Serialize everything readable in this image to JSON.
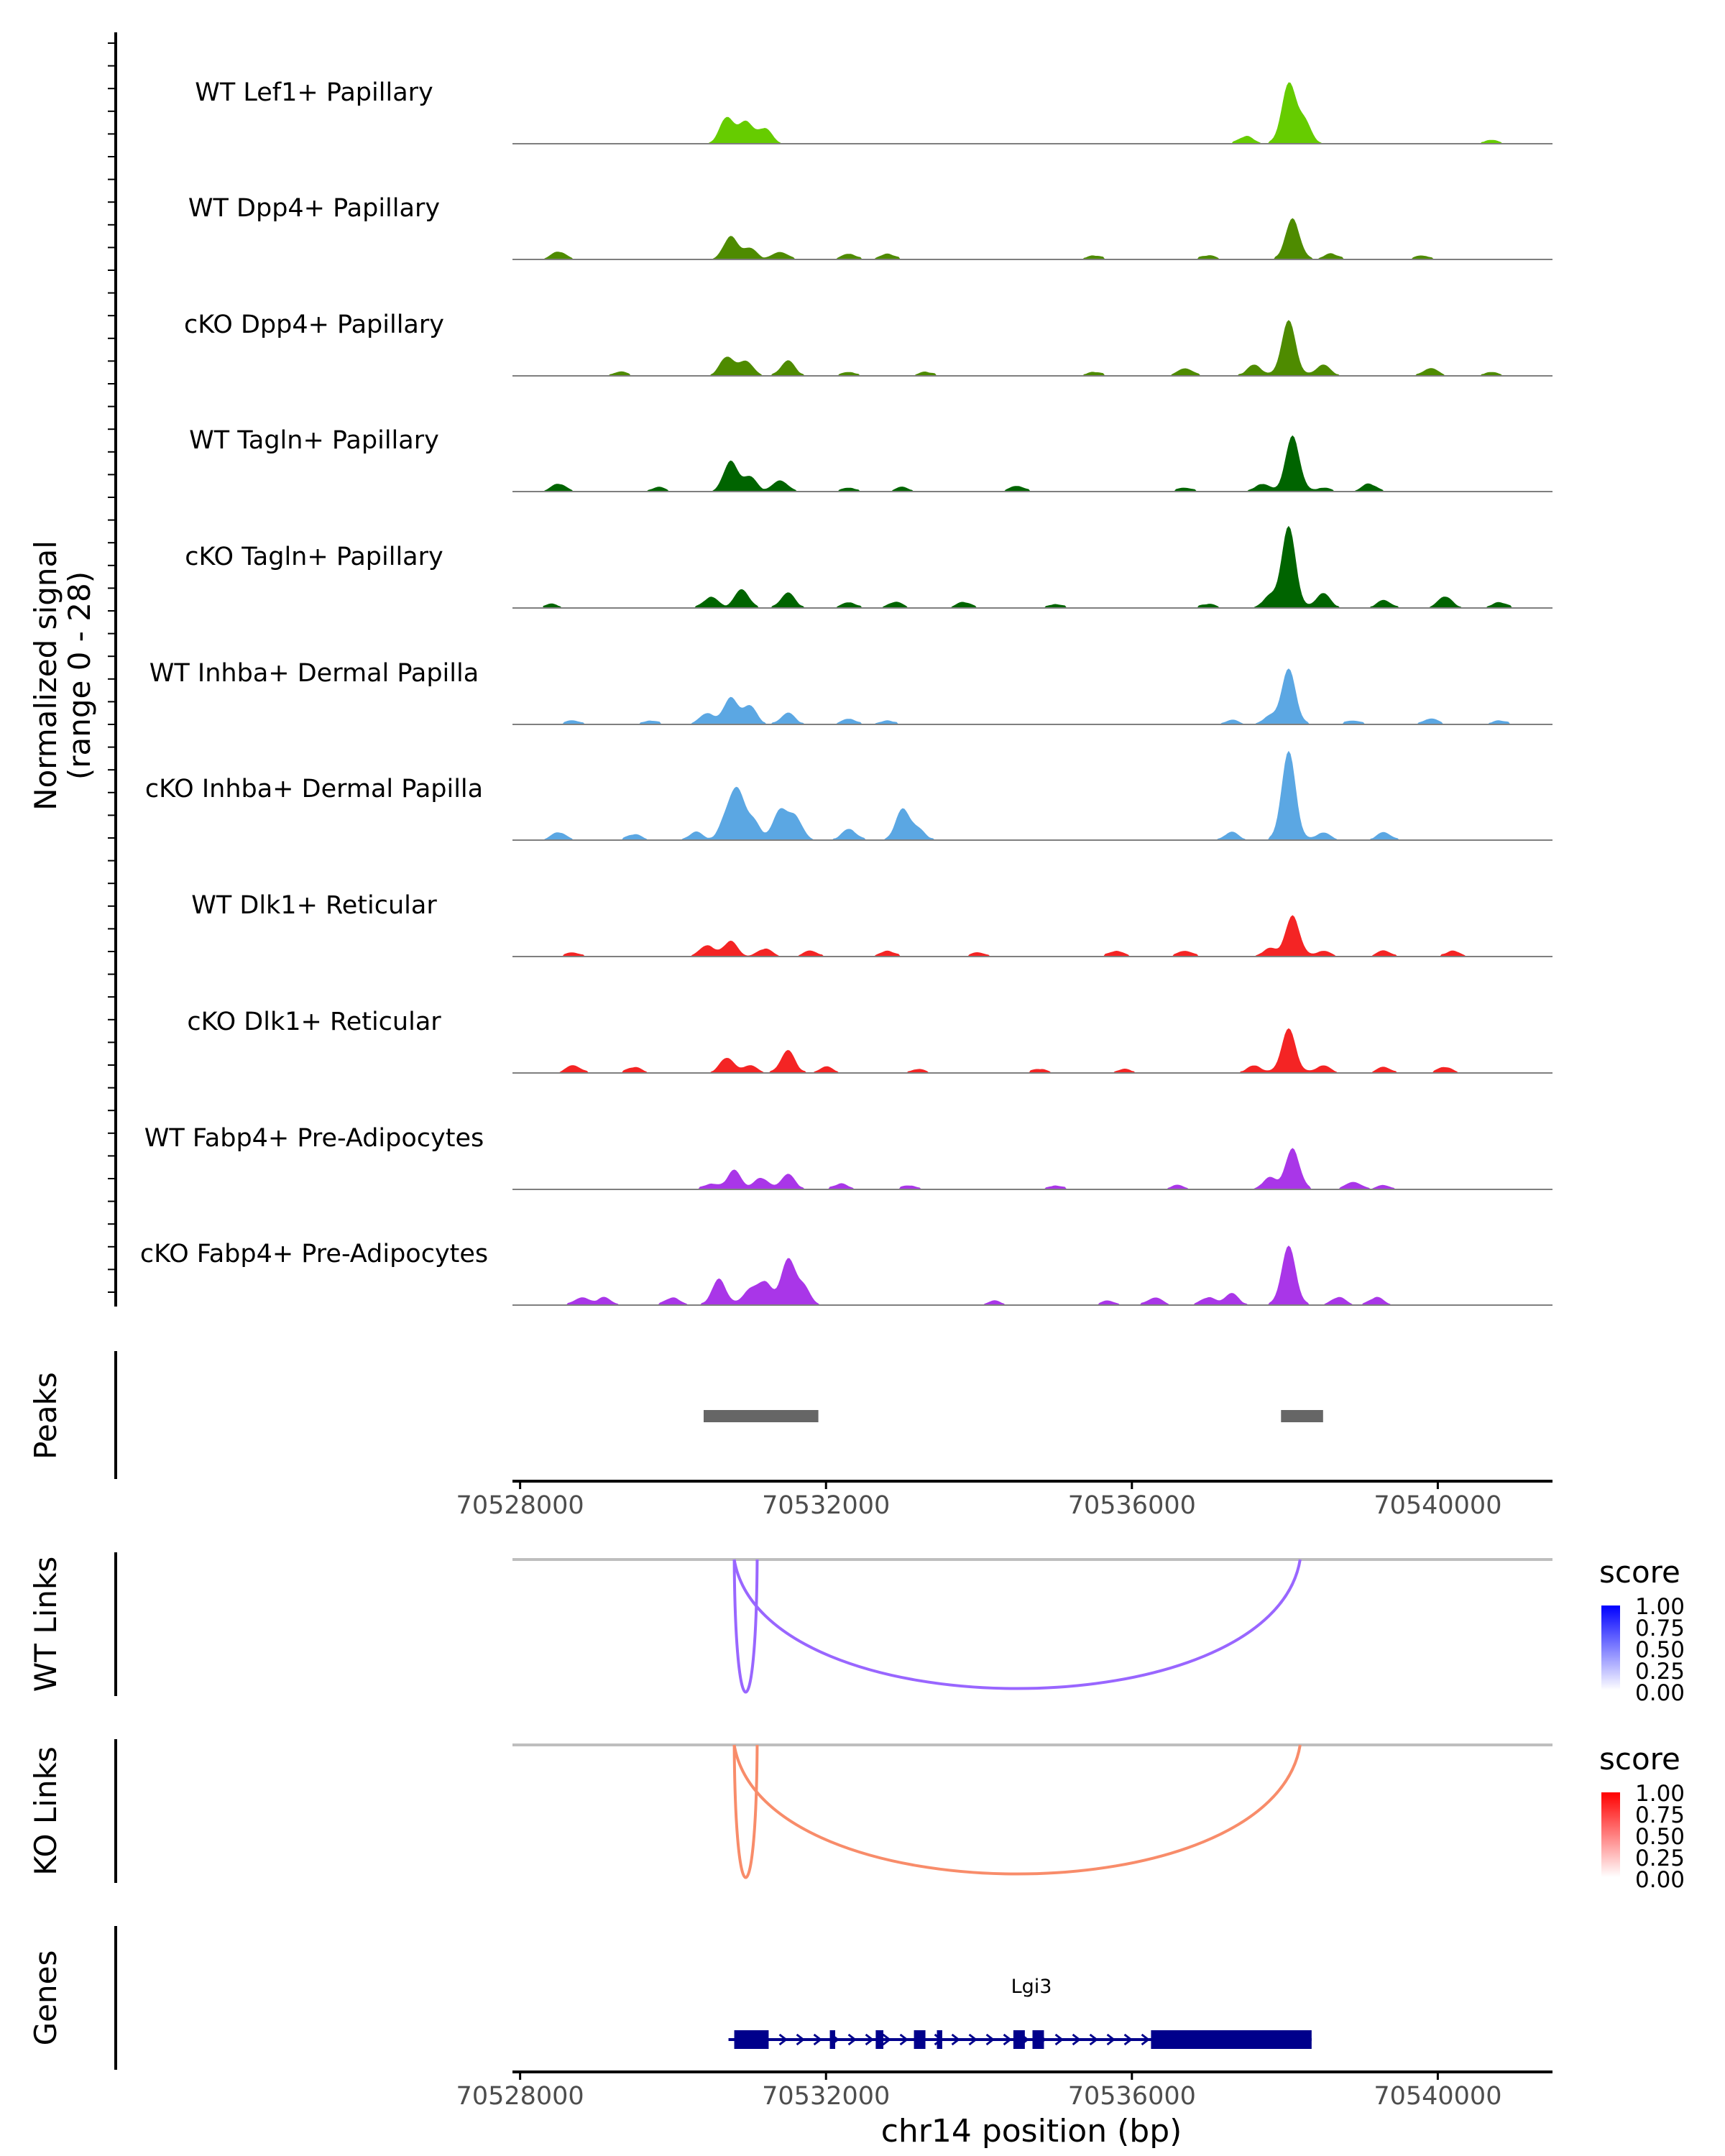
{
  "chart_data": {
    "type": "area",
    "title": "",
    "region": "chr14:70528000-70541500",
    "signal_ylabel_line1": "Normalized signal",
    "signal_ylabel_line2": "(range 0 - 28)",
    "ylim": [
      0,
      28
    ],
    "xlim": [
      70527900,
      70541500
    ],
    "tracks": [
      {
        "name": "WT Lef1+ Papillary",
        "color": "#66CC00",
        "peaks": [
          [
            70530700,
            7
          ],
          [
            70530950,
            6
          ],
          [
            70531200,
            4
          ],
          [
            70537500,
            2
          ],
          [
            70538050,
            16
          ],
          [
            70538250,
            6
          ],
          [
            70540700,
            1
          ]
        ]
      },
      {
        "name": "WT Dpp4+ Papillary",
        "color": "#4E8B00",
        "peaks": [
          [
            70528500,
            2
          ],
          [
            70530750,
            6
          ],
          [
            70531000,
            3
          ],
          [
            70531400,
            2
          ],
          [
            70532300,
            1.5
          ],
          [
            70532800,
            1.5
          ],
          [
            70535500,
            1
          ],
          [
            70537000,
            1
          ],
          [
            70538100,
            11
          ],
          [
            70538600,
            1.5
          ],
          [
            70539800,
            1
          ]
        ]
      },
      {
        "name": "cKO Dpp4+ Papillary",
        "color": "#4E8B00",
        "peaks": [
          [
            70529300,
            1
          ],
          [
            70530700,
            5
          ],
          [
            70530950,
            4
          ],
          [
            70531500,
            4
          ],
          [
            70532300,
            1
          ],
          [
            70533300,
            1
          ],
          [
            70535500,
            1
          ],
          [
            70536700,
            2
          ],
          [
            70537600,
            3
          ],
          [
            70538050,
            15
          ],
          [
            70538500,
            3
          ],
          [
            70539900,
            2
          ],
          [
            70540700,
            1
          ]
        ]
      },
      {
        "name": "WT Tagln+ Papillary",
        "color": "#006400",
        "peaks": [
          [
            70528500,
            2
          ],
          [
            70529800,
            1
          ],
          [
            70530750,
            8
          ],
          [
            70531000,
            4
          ],
          [
            70531400,
            3
          ],
          [
            70532300,
            1
          ],
          [
            70533000,
            1
          ],
          [
            70534500,
            1.5
          ],
          [
            70536700,
            1
          ],
          [
            70537700,
            2
          ],
          [
            70538100,
            15
          ],
          [
            70538500,
            1
          ],
          [
            70539100,
            2
          ]
        ]
      },
      {
        "name": "cKO Tagln+ Papillary",
        "color": "#006400",
        "peaks": [
          [
            70528400,
            1
          ],
          [
            70530500,
            3
          ],
          [
            70530900,
            5
          ],
          [
            70531500,
            4
          ],
          [
            70532300,
            1.5
          ],
          [
            70532900,
            1.5
          ],
          [
            70533800,
            1.5
          ],
          [
            70535000,
            1
          ],
          [
            70537000,
            1
          ],
          [
            70537800,
            3
          ],
          [
            70538050,
            22
          ],
          [
            70538500,
            4
          ],
          [
            70539300,
            2
          ],
          [
            70540100,
            3
          ],
          [
            70540800,
            1.5
          ]
        ]
      },
      {
        "name": "WT Inhba+ Dermal Papilla",
        "color": "#5BA7E3",
        "peaks": [
          [
            70528700,
            1
          ],
          [
            70529700,
            1
          ],
          [
            70530450,
            3
          ],
          [
            70530750,
            7
          ],
          [
            70531000,
            5
          ],
          [
            70531500,
            3
          ],
          [
            70532300,
            1.5
          ],
          [
            70532800,
            1
          ],
          [
            70537300,
            1
          ],
          [
            70537800,
            2
          ],
          [
            70538050,
            15
          ],
          [
            70538900,
            1
          ],
          [
            70539900,
            1.5
          ],
          [
            70540800,
            1
          ]
        ]
      },
      {
        "name": "cKO Inhba+ Dermal Papilla",
        "color": "#5BA7E3",
        "peaks": [
          [
            70528500,
            2
          ],
          [
            70529500,
            1.5
          ],
          [
            70530300,
            2
          ],
          [
            70530700,
            6
          ],
          [
            70530850,
            12
          ],
          [
            70531050,
            5
          ],
          [
            70531400,
            8
          ],
          [
            70531600,
            6
          ],
          [
            70532300,
            3
          ],
          [
            70533000,
            8
          ],
          [
            70533200,
            3
          ],
          [
            70537300,
            2
          ],
          [
            70538050,
            24
          ],
          [
            70538500,
            2
          ],
          [
            70539300,
            2
          ]
        ]
      },
      {
        "name": "WT Dlk1+ Reticular",
        "color": "#F42424",
        "peaks": [
          [
            70528700,
            1
          ],
          [
            70530450,
            3
          ],
          [
            70530750,
            4
          ],
          [
            70531200,
            2
          ],
          [
            70531800,
            1.5
          ],
          [
            70532800,
            1.5
          ],
          [
            70534000,
            1
          ],
          [
            70535800,
            1.5
          ],
          [
            70536700,
            1.5
          ],
          [
            70537800,
            2
          ],
          [
            70538100,
            11
          ],
          [
            70538500,
            1.5
          ],
          [
            70539300,
            1.5
          ],
          [
            70540200,
            1.5
          ]
        ]
      },
      {
        "name": "cKO Dlk1+ Reticular",
        "color": "#F42424",
        "peaks": [
          [
            70528700,
            2
          ],
          [
            70529500,
            1.5
          ],
          [
            70530700,
            4
          ],
          [
            70531000,
            2
          ],
          [
            70531500,
            6
          ],
          [
            70532000,
            1.5
          ],
          [
            70533200,
            1
          ],
          [
            70534800,
            1
          ],
          [
            70535900,
            1
          ],
          [
            70537600,
            2
          ],
          [
            70538050,
            12
          ],
          [
            70538500,
            2
          ],
          [
            70539300,
            1.5
          ],
          [
            70540100,
            1.5
          ]
        ]
      },
      {
        "name": "WT Fabp4+ Pre-Adipocytes",
        "color": "#A936E8",
        "peaks": [
          [
            70530500,
            1.5
          ],
          [
            70530800,
            5
          ],
          [
            70531150,
            3
          ],
          [
            70531500,
            4
          ],
          [
            70532200,
            1.5
          ],
          [
            70533100,
            1
          ],
          [
            70535000,
            1
          ],
          [
            70536600,
            1
          ],
          [
            70537800,
            3
          ],
          [
            70538100,
            11
          ],
          [
            70538900,
            2
          ],
          [
            70539300,
            1
          ]
        ]
      },
      {
        "name": "cKO Fabp4+ Pre-Adipocytes",
        "color": "#A936E8",
        "peaks": [
          [
            70528800,
            2
          ],
          [
            70529100,
            2
          ],
          [
            70530000,
            2
          ],
          [
            70530600,
            7
          ],
          [
            70531000,
            4
          ],
          [
            70531200,
            6
          ],
          [
            70531500,
            12
          ],
          [
            70531700,
            5
          ],
          [
            70534200,
            1
          ],
          [
            70535700,
            1
          ],
          [
            70536300,
            2
          ],
          [
            70537000,
            2
          ],
          [
            70537300,
            3
          ],
          [
            70538050,
            16
          ],
          [
            70538700,
            2
          ],
          [
            70539200,
            2
          ]
        ]
      }
    ],
    "peaks_track": {
      "label": "Peaks",
      "intervals": [
        [
          70530400,
          70531900
        ],
        [
          70537950,
          70538500
        ]
      ]
    },
    "axis": {
      "ticks": [
        70528000,
        70532000,
        70536000,
        70540000
      ],
      "tick_labels": [
        "70528000",
        "70532000",
        "70536000",
        "70540000"
      ],
      "xlabel": "chr14 position (bp)"
    },
    "wt_links": {
      "label": "WT Links",
      "color": "#9966FF",
      "links": [
        [
          70530800,
          70531100,
          0.6
        ],
        [
          70530800,
          70538200,
          0.6
        ]
      ],
      "legend_title": "score",
      "legend_low_color": "#FFFFFF",
      "legend_high_color": "#0000FF"
    },
    "ko_links": {
      "label": "KO Links",
      "color": "#F88C6A",
      "links": [
        [
          70530800,
          70531100,
          0.55
        ],
        [
          70530800,
          70538200,
          0.55
        ]
      ],
      "legend_title": "score",
      "legend_low_color": "#FFFFFF",
      "legend_high_color": "#FF0000"
    },
    "legend_breaks": [
      "1.00",
      "0.75",
      "0.50",
      "0.25",
      "0.00"
    ],
    "genes": {
      "label": "Genes",
      "gene_name": "Lgi3",
      "color": "#00008B",
      "start": 70530800,
      "end": 70538350,
      "exons": [
        [
          70530800,
          70531250
        ],
        [
          70532050,
          70532120
        ],
        [
          70532650,
          70532750
        ],
        [
          70533150,
          70533300
        ],
        [
          70533450,
          70533520
        ],
        [
          70534450,
          70534600
        ],
        [
          70534700,
          70534850
        ],
        [
          70536250,
          70538350
        ]
      ]
    }
  }
}
